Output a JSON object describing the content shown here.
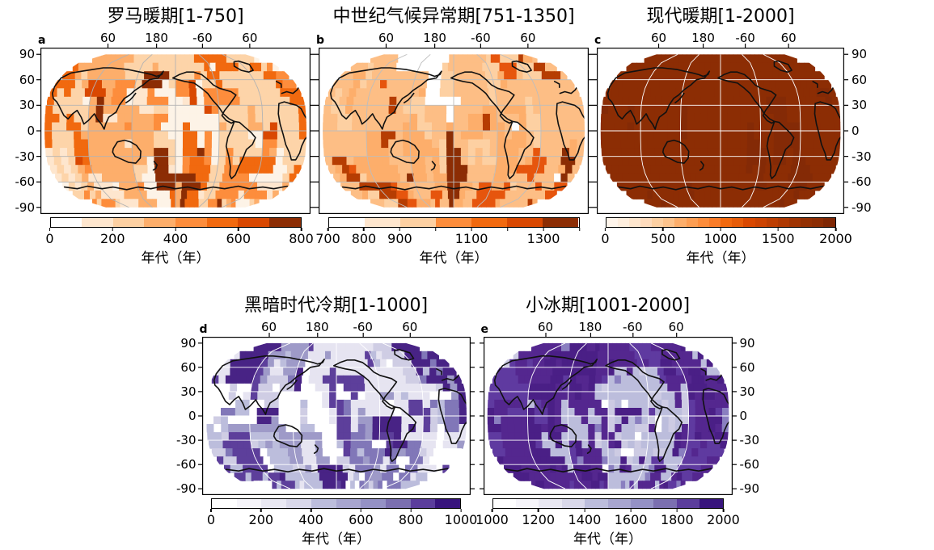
{
  "axes": {
    "lon_ticks": [
      "60",
      "180",
      "-60",
      "60"
    ],
    "lat_ticks": [
      "90",
      "60",
      "30",
      "0",
      "-30",
      "-60",
      "-90"
    ]
  },
  "panels": [
    {
      "letter": "a",
      "title": "罗马暖期[1-750]",
      "colorbar": {
        "unit": "年代（年）",
        "colors": [
          "#ffffff",
          "#fee6ce",
          "#fdd0a2",
          "#fdae6b",
          "#fd8d3c",
          "#f1690f",
          "#d94801",
          "#8c2d04"
        ],
        "ticks": [
          {
            "pos": 0.0,
            "label": "0"
          },
          {
            "pos": 0.25,
            "label": "200"
          },
          {
            "pos": 0.5,
            "label": "400"
          },
          {
            "pos": 0.75,
            "label": "600"
          },
          {
            "pos": 1.0,
            "label": "800"
          }
        ]
      },
      "map": {
        "seed": 11,
        "palette": [
          "#fdf3e7",
          "#fee6ce",
          "#fdd4a9",
          "#fdae6b",
          "#fd8d3c",
          "#f1690f",
          "#d94801",
          "#8c2d04"
        ],
        "weights": [
          0.17,
          0.12,
          0.13,
          0.12,
          0.2,
          0.14,
          0.07,
          0.05
        ],
        "graticule": "#b3b3b3"
      }
    },
    {
      "letter": "b",
      "title": "中世纪气候异常期[751-1350]",
      "colorbar": {
        "unit": "年代（年）",
        "colors": [
          "#ffffff",
          "#fee6ce",
          "#fdd0a2",
          "#fd8d3c",
          "#f1690f",
          "#d94801",
          "#8c2d04"
        ],
        "ticks": [
          {
            "pos": 0.0,
            "label": "700"
          },
          {
            "pos": 0.143,
            "label": "800"
          },
          {
            "pos": 0.286,
            "label": "900"
          },
          {
            "pos": 0.429,
            "label": ""
          },
          {
            "pos": 0.571,
            "label": "1100"
          },
          {
            "pos": 0.714,
            "label": ""
          },
          {
            "pos": 0.857,
            "label": "1300"
          },
          {
            "pos": 1.0,
            "label": ""
          }
        ]
      },
      "map": {
        "seed": 23,
        "palette": [
          "#fdbe85",
          "#fdae6b",
          "#fdd0a2",
          "#ffffff",
          "#e6550d",
          "#b63d02",
          "#8c2d04"
        ],
        "weights": [
          0.52,
          0.16,
          0.12,
          0.04,
          0.08,
          0.04,
          0.04
        ],
        "graticule": "#bdbdbd"
      }
    },
    {
      "letter": "c",
      "title": "现代暖期[1-2000]",
      "colorbar": {
        "unit": "年代（年）",
        "colors": [
          "#fff5eb",
          "#feeedd",
          "#fee6ce",
          "#fedbbc",
          "#fdd0a2",
          "#fdc38c",
          "#fdae6b",
          "#fd9e53",
          "#fd8d3c",
          "#f97c29",
          "#f1690f",
          "#e65c09",
          "#d94801",
          "#cc4302",
          "#bd3e02",
          "#af3903",
          "#a03403",
          "#933003",
          "#8c2d04",
          "#7f2704"
        ],
        "ticks": [
          {
            "pos": 0.0,
            "label": "0"
          },
          {
            "pos": 0.25,
            "label": "500"
          },
          {
            "pos": 0.5,
            "label": "1000"
          },
          {
            "pos": 0.75,
            "label": "1500"
          },
          {
            "pos": 1.0,
            "label": "2000"
          }
        ]
      },
      "map": {
        "seed": 5,
        "palette": [
          "#8c2d04",
          "#842a06"
        ],
        "weights": [
          0.93,
          0.07
        ],
        "graticule": "#ffffff"
      }
    },
    {
      "letter": "d",
      "title": "黑暗时代冷期[1-1000]",
      "colorbar": {
        "unit": "年代（年）",
        "colors": [
          "#ffffff",
          "#f6f5fa",
          "#e9e8f3",
          "#d9d8ea",
          "#bcbddc",
          "#a8a6d0",
          "#9491c5",
          "#7b6fb0",
          "#5b3d9c",
          "#38147d"
        ],
        "ticks": [
          {
            "pos": 0.0,
            "label": "0"
          },
          {
            "pos": 0.2,
            "label": "200"
          },
          {
            "pos": 0.4,
            "label": "400"
          },
          {
            "pos": 0.6,
            "label": "600"
          },
          {
            "pos": 0.8,
            "label": "800"
          },
          {
            "pos": 1.0,
            "label": "1000"
          }
        ]
      },
      "map": {
        "seed": 37,
        "palette": [
          "#ffffff",
          "#e6e4f1",
          "#cfcde4",
          "#bcbddc",
          "#9e9ac8",
          "#8177b8",
          "#5d3f9b",
          "#482385"
        ],
        "weights": [
          0.13,
          0.14,
          0.15,
          0.14,
          0.12,
          0.1,
          0.12,
          0.1
        ],
        "graticule": "#ffffff"
      }
    },
    {
      "letter": "e",
      "title": "小冰期[1001-2000]",
      "colorbar": {
        "unit": "年代（年）",
        "colors": [
          "#ffffff",
          "#f6f5fa",
          "#e9e8f3",
          "#d9d8ea",
          "#bcbddc",
          "#a8a6d0",
          "#9491c5",
          "#7b6fb0",
          "#5b3d9c",
          "#38147d"
        ],
        "ticks": [
          {
            "pos": 0.0,
            "label": "1000"
          },
          {
            "pos": 0.2,
            "label": "1200"
          },
          {
            "pos": 0.4,
            "label": "1400"
          },
          {
            "pos": 0.6,
            "label": "1600"
          },
          {
            "pos": 0.8,
            "label": "1800"
          },
          {
            "pos": 1.0,
            "label": "2000"
          }
        ]
      },
      "map": {
        "seed": 51,
        "palette": [
          "#54278f",
          "#4a1f86",
          "#5f3aa0",
          "#bcbddc",
          "#cdcbe3",
          "#ffffff",
          "#8a7fc0"
        ],
        "weights": [
          0.48,
          0.18,
          0.16,
          0.07,
          0.04,
          0.02,
          0.05
        ],
        "graticule": "#ffffff",
        "blob": {
          "u": 0.6,
          "v": 0.5,
          "ru": 0.17,
          "rv": 0.33,
          "weights": [
            0.04,
            0.02,
            0.04,
            0.52,
            0.28,
            0.06,
            0.04
          ]
        }
      }
    }
  ],
  "chart_data": [
    {
      "type": "heatmap",
      "panel": "a",
      "title": "罗马暖期[1-750]",
      "period": [
        1,
        750
      ],
      "value_label": "年代（年）",
      "colorbar_min": 0,
      "colorbar_max": 800,
      "colorbar_tick_labels": [
        "0",
        "200",
        "400",
        "600",
        "800"
      ],
      "colorbar_segments": 8,
      "color_family": "Oranges (white to dark brown)",
      "lon_tick_labels": [
        "60",
        "180",
        "-60",
        "60"
      ],
      "lat_tick_labels": [
        "90",
        "60",
        "30",
        "0",
        "-30",
        "-60",
        "-90"
      ],
      "pattern": "global patchwork of light-to-dark orange grid cells"
    },
    {
      "type": "heatmap",
      "panel": "b",
      "title": "中世纪气候异常期[751-1350]",
      "period": [
        751,
        1350
      ],
      "value_label": "年代（年）",
      "colorbar_min": 700,
      "colorbar_max": 1400,
      "colorbar_tick_labels": [
        "700",
        "800",
        "900",
        "1100",
        "1300"
      ],
      "colorbar_segments": 7,
      "color_family": "Oranges (white to dark brown)",
      "lon_tick_labels": [
        "60",
        "180",
        "-60",
        "60"
      ],
      "lat_tick_labels": [
        "90",
        "60",
        "30",
        "0",
        "-30",
        "-60",
        "-90"
      ],
      "pattern": "mostly mid-light orange with scattered dark brown and white patches"
    },
    {
      "type": "heatmap",
      "panel": "c",
      "title": "现代暖期[1-2000]",
      "period": [
        1,
        2000
      ],
      "value_label": "年代（年）",
      "colorbar_min": 0,
      "colorbar_max": 2000,
      "colorbar_tick_labels": [
        "0",
        "500",
        "1000",
        "1500",
        "2000"
      ],
      "colorbar_segments": 20,
      "color_family": "Oranges (white to dark brown)",
      "lon_tick_labels": [
        "60",
        "180",
        "-60",
        "60"
      ],
      "lat_tick_labels": [
        "90",
        "60",
        "30",
        "0",
        "-30",
        "-60",
        "-90"
      ],
      "pattern": "uniform dark brown (maximum age) worldwide"
    },
    {
      "type": "heatmap",
      "panel": "d",
      "title": "黑暗时代冷期[1-1000]",
      "period": [
        1,
        1000
      ],
      "value_label": "年代（年）",
      "colorbar_min": 0,
      "colorbar_max": 1000,
      "colorbar_tick_labels": [
        "0",
        "200",
        "400",
        "600",
        "800",
        "1000"
      ],
      "colorbar_segments": 10,
      "color_family": "Purples (white to dark purple)",
      "lon_tick_labels": [
        "60",
        "180",
        "-60",
        "60"
      ],
      "lat_tick_labels": [
        "90",
        "60",
        "30",
        "0",
        "-30",
        "-60",
        "-90"
      ],
      "pattern": "global patchwork of light-to-dark purple grid cells"
    },
    {
      "type": "heatmap",
      "panel": "e",
      "title": "小冰期[1001-2000]",
      "period": [
        1001,
        2000
      ],
      "value_label": "年代（年）",
      "colorbar_min": 1000,
      "colorbar_max": 2000,
      "colorbar_tick_labels": [
        "1000",
        "1200",
        "1400",
        "1600",
        "1800",
        "2000"
      ],
      "colorbar_segments": 10,
      "color_family": "Purples (white to dark purple)",
      "lon_tick_labels": [
        "60",
        "180",
        "-60",
        "60"
      ],
      "lat_tick_labels": [
        "90",
        "60",
        "30",
        "0",
        "-30",
        "-60",
        "-90"
      ],
      "pattern": "mostly dark purple with a light lavender region over the eastern tropical Pacific and Americas"
    }
  ]
}
